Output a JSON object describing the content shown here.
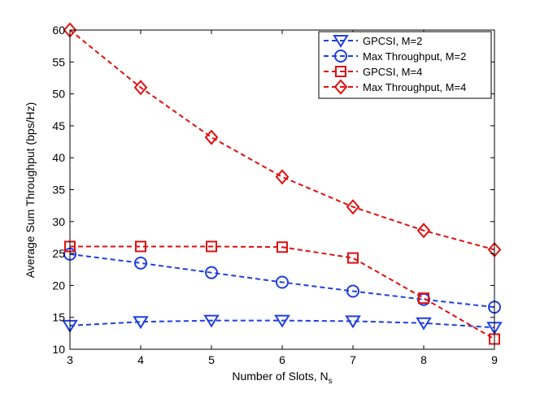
{
  "chart_data": {
    "type": "line",
    "title": "",
    "xlabel": "Number of Slots, N",
    "xlabel_subscript": "s",
    "ylabel": "Average Sum Throughput (bps/Hz)",
    "xlim": [
      3,
      9
    ],
    "ylim": [
      10,
      60
    ],
    "xticks": [
      3,
      4,
      5,
      6,
      7,
      8,
      9
    ],
    "yticks": [
      10,
      15,
      20,
      25,
      30,
      35,
      40,
      45,
      50,
      55,
      60
    ],
    "grid": false,
    "legend_position": "top-right",
    "x": [
      3,
      4,
      5,
      6,
      7,
      8,
      9
    ],
    "series": [
      {
        "name": "GPCSI, M=2",
        "color": "#1f3fe0",
        "marker": "triangle-down",
        "values": [
          13.7,
          14.3,
          14.5,
          14.5,
          14.4,
          14.1,
          13.4
        ]
      },
      {
        "name": "Max Throughput, M=2",
        "color": "#1f3fe0",
        "marker": "circle",
        "values": [
          24.9,
          23.5,
          22.0,
          20.5,
          19.1,
          17.8,
          16.6
        ]
      },
      {
        "name": "GPCSI, M=4",
        "color": "#e01010",
        "marker": "square",
        "values": [
          26.1,
          26.1,
          26.1,
          26.0,
          24.3,
          18.0,
          11.6
        ]
      },
      {
        "name": "Max Throughput, M=4",
        "color": "#e01010",
        "marker": "diamond",
        "values": [
          60.0,
          51.0,
          43.2,
          37.0,
          32.3,
          28.6,
          25.6
        ]
      }
    ]
  }
}
